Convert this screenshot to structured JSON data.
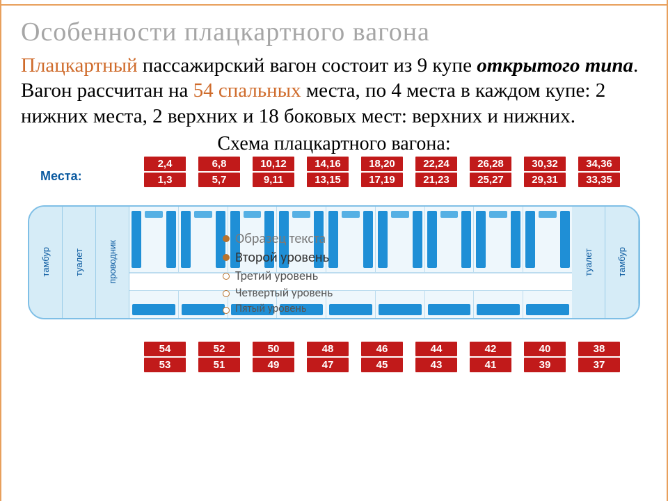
{
  "title": "Особенности плацкартного вагона",
  "para_html": {
    "t1": "Плацкартный",
    "t2": " пассажирский вагон состоит из 9 купе ",
    "t3": "открытого типа",
    "t4": ". Вагон рассчитан на ",
    "t5": "54 спальных",
    "t6": " места, по 4 места в каждом купе: 2 нижних места, 2 верхних и 18 боковых мест: верхних и нижних."
  },
  "subtitle": "Схема плацкартного вагона:",
  "mesta": "Места:",
  "top_labels": [
    [
      "2,4",
      "1,3"
    ],
    [
      "6,8",
      "5,7"
    ],
    [
      "10,12",
      "9,11"
    ],
    [
      "14,16",
      "13,15"
    ],
    [
      "18,20",
      "17,19"
    ],
    [
      "22,24",
      "21,23"
    ],
    [
      "26,28",
      "25,27"
    ],
    [
      "30,32",
      "29,31"
    ],
    [
      "34,36",
      "33,35"
    ]
  ],
  "bottom_labels": [
    [
      "54",
      "53"
    ],
    [
      "52",
      "51"
    ],
    [
      "50",
      "49"
    ],
    [
      "48",
      "47"
    ],
    [
      "46",
      "45"
    ],
    [
      "44",
      "43"
    ],
    [
      "42",
      "41"
    ],
    [
      "40",
      "39"
    ],
    [
      "38",
      "37"
    ]
  ],
  "rooms_left": [
    "тамбур",
    "туалет",
    "проводник"
  ],
  "rooms_right": [
    "туалет",
    "тамбур"
  ],
  "overlay": {
    "l1": "Образец текста",
    "l2": "Второй уровень",
    "l3": "Третий уровень",
    "l4": "Четвертый уровень",
    "l5": "Пятый уровень",
    "fs": [
      20,
      20,
      18,
      17,
      16
    ]
  },
  "colors": {
    "accent": "#cf6b2b",
    "red": "#c11a1a",
    "blue": "#1f8fd6",
    "blue_lt": "#55b0e4",
    "border": "#e8a05c",
    "wagon_border": "#7fbfe6",
    "text_blue": "#0b5aa0"
  }
}
